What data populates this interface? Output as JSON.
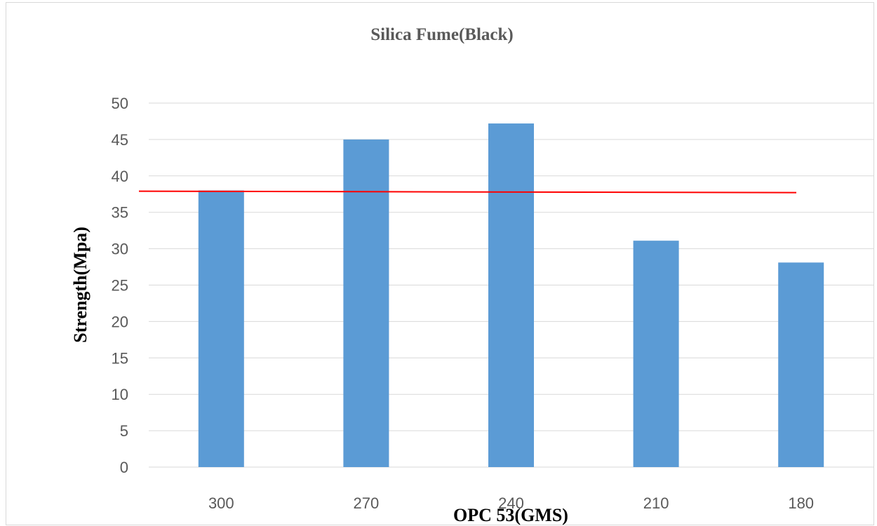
{
  "chart_data": {
    "type": "bar",
    "title": "Silica Fume(Black)",
    "xlabel": "OPC 53(GMS)",
    "ylabel": "Strength(Mpa)",
    "categories": [
      "300",
      "270",
      "240",
      "210",
      "180"
    ],
    "values": [
      38,
      45,
      47.2,
      31.1,
      28.1
    ],
    "ylim": [
      0,
      50
    ],
    "yticks": [
      0,
      5,
      10,
      15,
      20,
      25,
      30,
      35,
      40,
      45,
      50
    ],
    "grid": true,
    "legend": "none",
    "reference_line": {
      "start_value": 37.9,
      "end_value": 37.7,
      "color": "#ff0000"
    },
    "colors": {
      "bar": "#5b9bd5",
      "grid": "#d9d9d9",
      "text": "#595959"
    }
  }
}
